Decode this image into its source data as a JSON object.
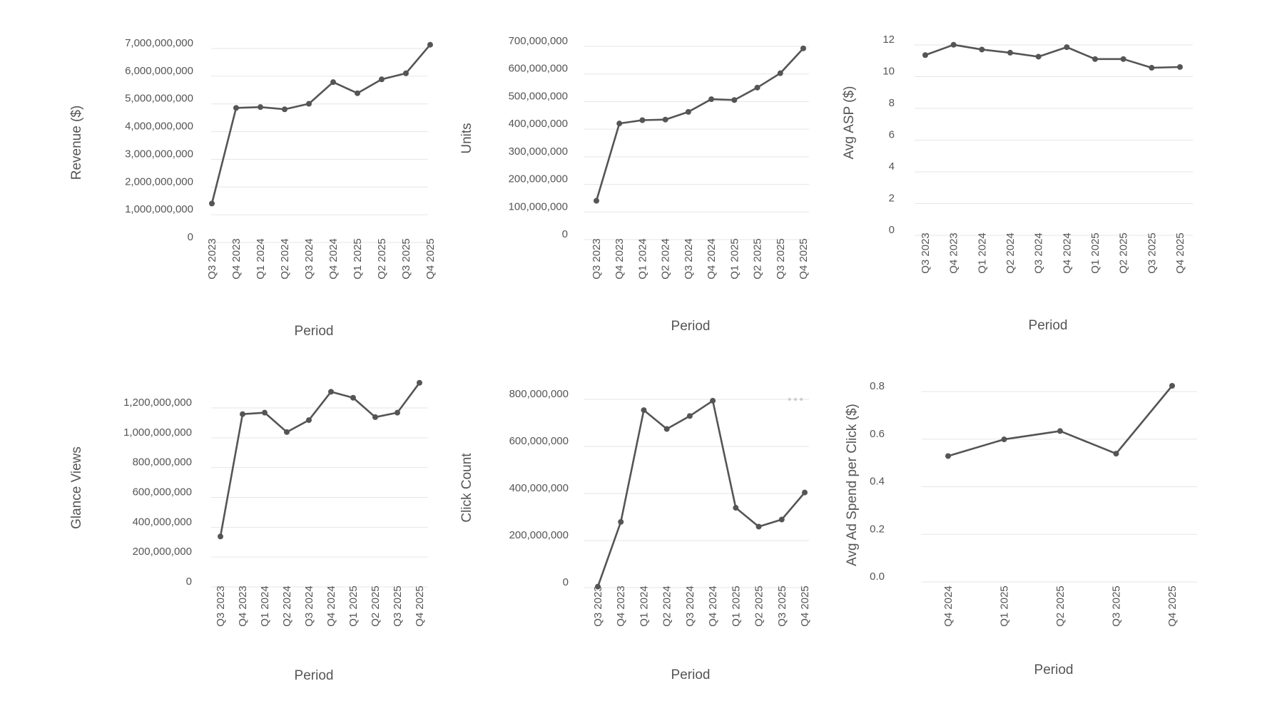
{
  "chart_data": [
    {
      "id": "revenue",
      "type": "line",
      "xlabel": "Period",
      "ylabel": "Revenue ($)",
      "categories": [
        "Q3 2023",
        "Q4 2023",
        "Q1 2024",
        "Q2 2024",
        "Q3 2024",
        "Q4 2024",
        "Q1 2025",
        "Q2 2025",
        "Q3 2025",
        "Q4 2025"
      ],
      "values": [
        1200000000,
        4650000000,
        4680000000,
        4600000000,
        4800000000,
        5580000000,
        5180000000,
        5680000000,
        5900000000,
        6930000000
      ],
      "ylim": [
        0,
        7000000000
      ],
      "yticks": [
        0,
        1000000000,
        2000000000,
        3000000000,
        4000000000,
        5000000000,
        6000000000,
        7000000000
      ],
      "ytick_labels": [
        "0",
        "1,000,000,000",
        "2,000,000,000",
        "3,000,000,000",
        "4,000,000,000",
        "5,000,000,000",
        "6,000,000,000",
        "7,000,000,000"
      ],
      "grid": true,
      "line_color": "#555555"
    },
    {
      "id": "units",
      "type": "line",
      "xlabel": "Period",
      "ylabel": "Units",
      "categories": [
        "Q3 2023",
        "Q4 2023",
        "Q1 2024",
        "Q2 2024",
        "Q3 2024",
        "Q4 2024",
        "Q1 2025",
        "Q2 2025",
        "Q3 2025",
        "Q4 2025"
      ],
      "values": [
        120000000,
        400000000,
        412000000,
        414000000,
        442000000,
        488000000,
        485000000,
        530000000,
        582000000,
        672000000
      ],
      "ylim": [
        0,
        700000000
      ],
      "yticks": [
        0,
        100000000,
        200000000,
        300000000,
        400000000,
        500000000,
        600000000,
        700000000
      ],
      "ytick_labels": [
        "0",
        "100,000,000",
        "200,000,000",
        "300,000,000",
        "400,000,000",
        "500,000,000",
        "600,000,000",
        "700,000,000"
      ],
      "grid": true,
      "line_color": "#555555"
    },
    {
      "id": "asp",
      "type": "line",
      "xlabel": "Period",
      "ylabel": "Avg ASP ($)",
      "categories": [
        "Q3 2023",
        "Q4 2023",
        "Q1 2024",
        "Q2 2024",
        "Q3 2024",
        "Q4 2024",
        "Q1 2025",
        "Q2 2025",
        "Q3 2025",
        "Q4 2025"
      ],
      "values": [
        11.0,
        11.65,
        11.35,
        11.15,
        10.9,
        11.5,
        10.75,
        10.75,
        10.2,
        10.25
      ],
      "ylim": [
        0,
        12
      ],
      "yticks": [
        0,
        2,
        4,
        6,
        8,
        10,
        12
      ],
      "ytick_labels": [
        "0",
        "2",
        "4",
        "6",
        "8",
        "10",
        "12"
      ],
      "grid": true,
      "line_color": "#555555"
    },
    {
      "id": "glance",
      "type": "line",
      "xlabel": "Period",
      "ylabel": "Glance Views",
      "categories": [
        "Q3 2023",
        "Q4 2023",
        "Q1 2024",
        "Q2 2024",
        "Q3 2024",
        "Q4 2024",
        "Q1 2025",
        "Q2 2025",
        "Q3 2025",
        "Q4 2025"
      ],
      "values": [
        300000000,
        1120000000,
        1130000000,
        1000000000,
        1080000000,
        1270000000,
        1230000000,
        1100000000,
        1130000000,
        1330000000
      ],
      "ylim": [
        0,
        1200000000
      ],
      "yticks": [
        0,
        200000000,
        400000000,
        600000000,
        800000000,
        1000000000,
        1200000000
      ],
      "ytick_labels": [
        "0",
        "200,000,000",
        "400,000,000",
        "600,000,000",
        "800,000,000",
        "1,000,000,000",
        "1,200,000,000"
      ],
      "grid": true,
      "line_color": "#555555"
    },
    {
      "id": "clicks",
      "type": "line",
      "xlabel": "Period",
      "ylabel": "Click Count",
      "categories": [
        "Q3 2023",
        "Q4 2023",
        "Q1 2024",
        "Q2 2024",
        "Q3 2024",
        "Q4 2024",
        "Q1 2025",
        "Q2 2025",
        "Q3 2025",
        "Q4 2025"
      ],
      "values": [
        -20000000,
        255000000,
        730000000,
        650000000,
        705000000,
        770000000,
        315000000,
        235000000,
        265000000,
        380000000
      ],
      "ylim": [
        0,
        800000000
      ],
      "yticks": [
        0,
        200000000,
        400000000,
        600000000,
        800000000
      ],
      "ytick_labels": [
        "0",
        "200,000,000",
        "400,000,000",
        "600,000,000",
        "800,000,000"
      ],
      "grid": true,
      "line_color": "#555555",
      "more_icon": "more-horizontal-icon",
      "more_icon_glyph": "•••"
    },
    {
      "id": "adspend",
      "type": "line",
      "xlabel": "Period",
      "ylabel": "Avg Ad Spend per Click ($)",
      "categories": [
        "Q4 2024",
        "Q1 2025",
        "Q2 2025",
        "Q3 2025",
        "Q4 2025"
      ],
      "values": [
        0.505,
        0.575,
        0.61,
        0.515,
        0.8
      ],
      "ylim": [
        0,
        0.8
      ],
      "yticks": [
        0,
        0.2,
        0.4,
        0.6,
        0.8
      ],
      "ytick_labels": [
        "0.0",
        "0.2",
        "0.4",
        "0.6",
        "0.8"
      ],
      "grid": true,
      "line_color": "#555555"
    }
  ]
}
